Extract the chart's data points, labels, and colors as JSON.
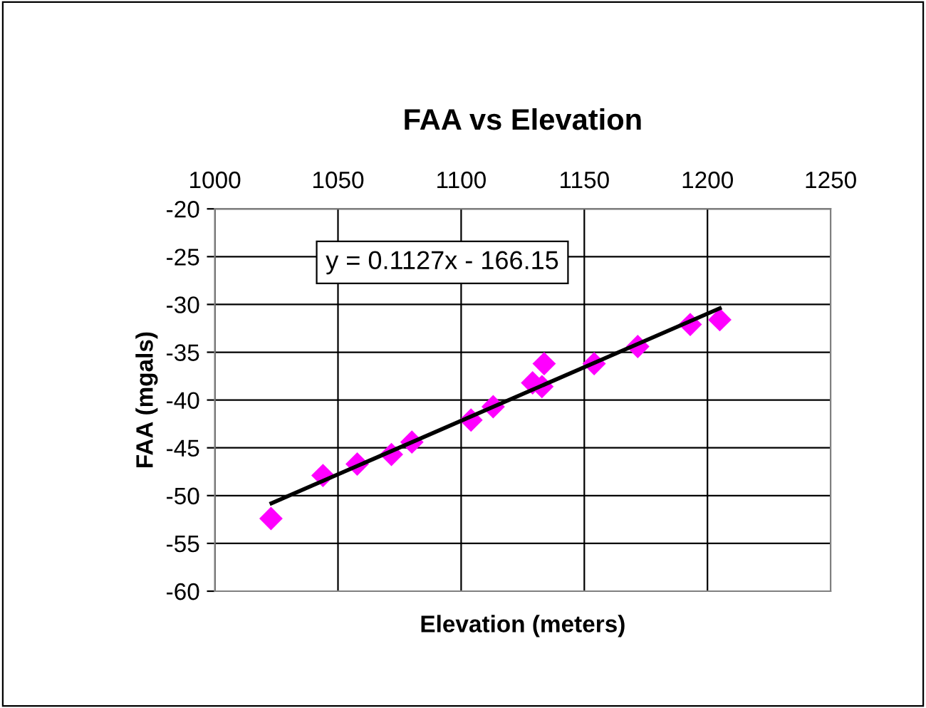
{
  "chart_data": {
    "type": "scatter",
    "title": "FAA vs Elevation",
    "xlabel": "Elevation (meters)",
    "ylabel": "FAA (mgals)",
    "series": [
      {
        "color": "#ff00ff",
        "marker": "diamond",
        "x": [
          1022.8,
          1043.9,
          1057.8,
          1071.7,
          1080,
          1104,
          1113,
          1129,
          1132.8,
          1133.7,
          1154,
          1171.7,
          1193,
          1205
        ],
        "values": [
          -52.4,
          -47.9,
          -46.7,
          -45.7,
          -44.4,
          -42.1,
          -40.7,
          -38.2,
          -38.6,
          -36.2,
          -36.2,
          -34.4,
          -32.1,
          -31.6
        ]
      },
      {
        "type": "line",
        "color": "#000000",
        "marker": "none",
        "line_style": "solid",
        "x": [
          1023,
          1205
        ],
        "values": [
          -50.8,
          -30.4
        ]
      }
    ],
    "annotations": [
      "y = 0.1127x - 166.15"
    ],
    "xlim": [
      1000,
      1250
    ],
    "xticks": [
      1000,
      1050,
      1100,
      1150,
      1200,
      1250
    ],
    "ylim": [
      -60,
      -20
    ],
    "yticks": [
      -60,
      -55,
      -50,
      -45,
      -40,
      -35,
      -30,
      -25,
      -20
    ],
    "grid": true,
    "legend": false
  }
}
